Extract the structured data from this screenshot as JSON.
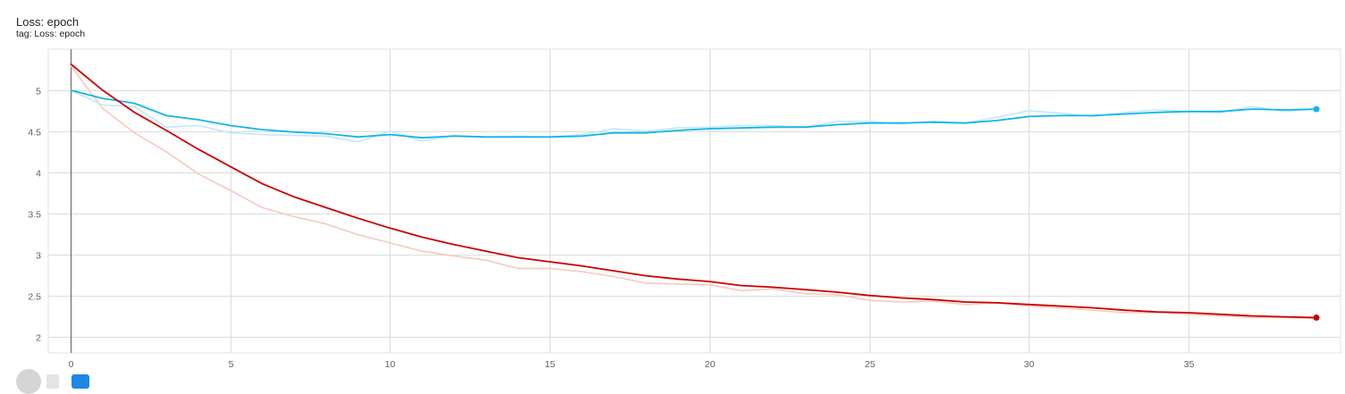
{
  "chart_data": {
    "type": "line",
    "title": "Loss: epoch",
    "subtitle": "tag: Loss: epoch",
    "xlim": [
      0,
      39
    ],
    "ylim": [
      1.8,
      5.5
    ],
    "x_ticks": [
      0,
      5,
      10,
      15,
      20,
      25,
      30,
      35
    ],
    "y_ticks": [
      2,
      2.5,
      3,
      3.5,
      4,
      4.5,
      5
    ],
    "grid": true,
    "series": [
      {
        "color": "#12b5e9",
        "raw_color": "#bfe9f8",
        "x": [
          0,
          1,
          2,
          3,
          4,
          5,
          6,
          7,
          8,
          9,
          10,
          11,
          12,
          13,
          14,
          15,
          16,
          17,
          18,
          19,
          20,
          21,
          22,
          23,
          24,
          25,
          26,
          27,
          28,
          29,
          30,
          31,
          32,
          33,
          34,
          35,
          36,
          37,
          38,
          39
        ],
        "raw": [
          5.0,
          4.82,
          4.8,
          4.55,
          4.57,
          4.48,
          4.46,
          4.45,
          4.44,
          4.37,
          4.5,
          4.38,
          4.45,
          4.43,
          4.44,
          4.43,
          4.46,
          4.53,
          4.5,
          4.54,
          4.55,
          4.57,
          4.57,
          4.55,
          4.62,
          4.62,
          4.59,
          4.62,
          4.6,
          4.67,
          4.75,
          4.72,
          4.68,
          4.73,
          4.76,
          4.74,
          4.73,
          4.8,
          4.74,
          4.77
        ],
        "smoothed": [
          5.0,
          4.9,
          4.84,
          4.69,
          4.64,
          4.57,
          4.52,
          4.49,
          4.47,
          4.43,
          4.46,
          4.42,
          4.44,
          4.43,
          4.43,
          4.43,
          4.44,
          4.48,
          4.48,
          4.51,
          4.53,
          4.54,
          4.55,
          4.55,
          4.58,
          4.6,
          4.6,
          4.61,
          4.6,
          4.63,
          4.68,
          4.69,
          4.69,
          4.71,
          4.73,
          4.74,
          4.74,
          4.77,
          4.76,
          4.77
        ]
      },
      {
        "color": "#cc0000",
        "raw_color": "#f7c9bf",
        "x": [
          0,
          1,
          2,
          3,
          4,
          5,
          6,
          7,
          8,
          9,
          10,
          11,
          12,
          13,
          14,
          15,
          16,
          17,
          18,
          19,
          20,
          21,
          22,
          23,
          24,
          25,
          26,
          27,
          28,
          29,
          30,
          31,
          32,
          33,
          34,
          35,
          36,
          37,
          38,
          39
        ],
        "raw": [
          5.3,
          4.78,
          4.48,
          4.25,
          3.98,
          3.78,
          3.57,
          3.46,
          3.37,
          3.24,
          3.14,
          3.04,
          2.98,
          2.93,
          2.83,
          2.83,
          2.79,
          2.73,
          2.65,
          2.64,
          2.63,
          2.56,
          2.58,
          2.52,
          2.51,
          2.44,
          2.42,
          2.43,
          2.39,
          2.41,
          2.37,
          2.35,
          2.32,
          2.29,
          2.29,
          2.27,
          2.25,
          2.23,
          2.23,
          2.22
        ],
        "smoothed": [
          5.32,
          5.0,
          4.73,
          4.51,
          4.28,
          4.07,
          3.86,
          3.7,
          3.57,
          3.44,
          3.32,
          3.21,
          3.12,
          3.04,
          2.96,
          2.91,
          2.86,
          2.8,
          2.74,
          2.7,
          2.67,
          2.62,
          2.6,
          2.57,
          2.54,
          2.5,
          2.47,
          2.45,
          2.42,
          2.41,
          2.39,
          2.37,
          2.35,
          2.32,
          2.3,
          2.29,
          2.27,
          2.25,
          2.24,
          2.23
        ]
      }
    ]
  }
}
